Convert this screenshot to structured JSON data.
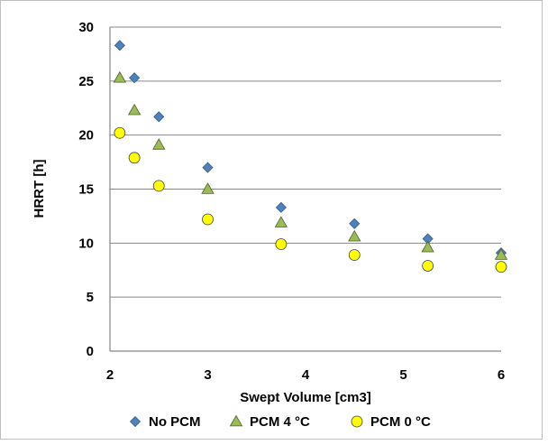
{
  "chart_data": {
    "type": "scatter",
    "title": "",
    "xlabel": "Swept Volume [cm3]",
    "ylabel": "HRRT [h]",
    "xlim": [
      2,
      6
    ],
    "ylim": [
      0,
      30
    ],
    "xticks": [
      "2",
      "3",
      "4",
      "5",
      "6"
    ],
    "yticks": [
      "0",
      "5",
      "10",
      "15",
      "20",
      "25",
      "30"
    ],
    "grid": "horizontal",
    "legend_position": "bottom",
    "series": [
      {
        "name": "No PCM",
        "marker": "diamond",
        "color": "#4f81bd",
        "points": [
          [
            2.1,
            28.3
          ],
          [
            2.25,
            25.3
          ],
          [
            2.5,
            21.7
          ],
          [
            3.0,
            17.0
          ],
          [
            3.75,
            13.3
          ],
          [
            4.5,
            11.8
          ],
          [
            5.25,
            10.4
          ],
          [
            6.0,
            9.1
          ]
        ]
      },
      {
        "name": "PCM 4 °C",
        "marker": "triangle",
        "color": "#9bbb59",
        "points": [
          [
            2.1,
            25.3
          ],
          [
            2.25,
            22.3
          ],
          [
            2.5,
            19.1
          ],
          [
            3.0,
            15.0
          ],
          [
            3.75,
            11.9
          ],
          [
            4.5,
            10.6
          ],
          [
            5.25,
            9.6
          ],
          [
            6.0,
            8.9
          ]
        ]
      },
      {
        "name": "PCM 0 °C",
        "marker": "circle",
        "color": "#ffff00",
        "points": [
          [
            2.1,
            20.2
          ],
          [
            2.25,
            17.9
          ],
          [
            2.5,
            15.3
          ],
          [
            3.0,
            12.2
          ],
          [
            3.75,
            9.9
          ],
          [
            4.5,
            8.9
          ],
          [
            5.25,
            7.9
          ],
          [
            6.0,
            7.8
          ]
        ]
      }
    ]
  }
}
